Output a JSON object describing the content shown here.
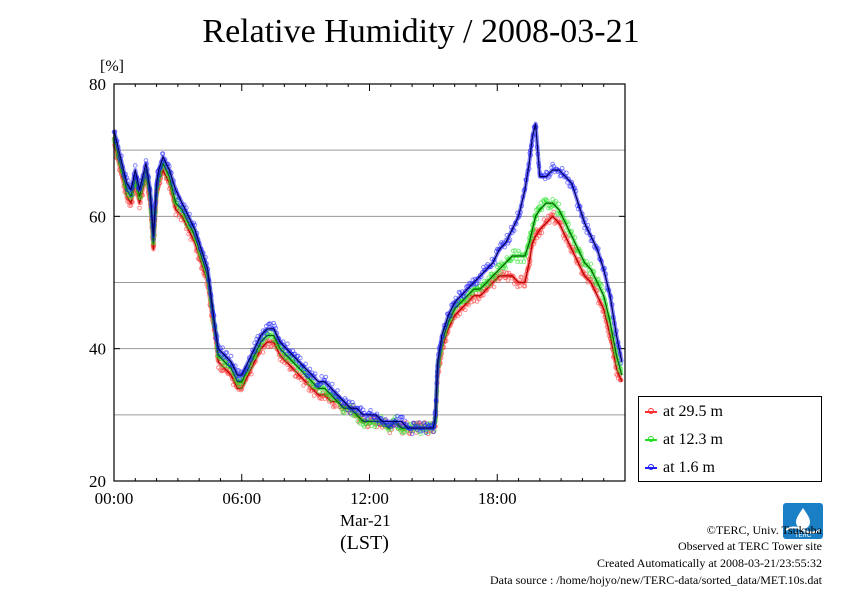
{
  "chart_data": {
    "type": "line",
    "title": "Relative Humidity / 2008-03-21",
    "ylabel": "[%]",
    "xlabel_date": "Mar-21",
    "xlabel_unit": "(LST)",
    "ylim": [
      20,
      80
    ],
    "yticks": [
      "20",
      "40",
      "60",
      "80"
    ],
    "xlim": [
      0,
      24
    ],
    "xticks": [
      {
        "x": 0,
        "label": "00:00"
      },
      {
        "x": 6,
        "label": "06:00"
      },
      {
        "x": 12,
        "label": "12:00"
      },
      {
        "x": 18,
        "label": "18:00"
      }
    ],
    "grid": true,
    "legend_position": "right-bottom",
    "x": [
      0.0,
      0.3,
      0.6,
      0.8,
      1.0,
      1.2,
      1.5,
      1.7,
      1.85,
      2.0,
      2.1,
      2.3,
      2.6,
      2.9,
      3.2,
      3.5,
      3.8,
      4.1,
      4.4,
      4.6,
      4.75,
      4.9,
      5.2,
      5.5,
      5.8,
      6.0,
      6.3,
      6.6,
      6.9,
      7.2,
      7.5,
      7.8,
      8.1,
      8.4,
      8.7,
      9.0,
      9.3,
      9.6,
      9.9,
      10.2,
      10.5,
      10.8,
      11.1,
      11.4,
      11.7,
      12.0,
      12.3,
      12.6,
      12.9,
      13.2,
      13.5,
      13.8,
      14.1,
      14.4,
      14.7,
      15.0,
      15.1,
      15.2,
      15.4,
      15.7,
      16.0,
      16.3,
      16.6,
      16.9,
      17.2,
      17.5,
      17.8,
      18.1,
      18.4,
      18.7,
      19.0,
      19.3,
      19.5,
      19.65,
      19.8,
      20.0,
      20.3,
      20.6,
      20.9,
      21.2,
      21.5,
      21.8,
      22.1,
      22.4,
      22.7,
      23.0,
      23.3,
      23.6,
      23.85
    ],
    "series": [
      {
        "name": "at 29.5 m",
        "color": "#ff3030",
        "values": [
          71,
          67,
          63,
          62,
          65,
          62,
          66,
          62,
          55,
          63,
          65,
          67,
          65,
          61,
          60,
          58,
          56,
          53,
          50,
          45,
          42,
          38,
          37,
          36,
          34,
          34,
          36,
          38,
          40,
          41,
          41,
          39,
          38,
          37,
          36,
          35,
          34,
          33,
          33,
          32,
          32,
          31,
          31,
          30,
          29,
          29,
          29,
          29,
          28,
          29,
          28,
          28,
          28,
          28,
          28,
          28,
          29,
          36,
          40,
          43,
          45,
          46,
          47,
          48,
          48,
          49,
          50,
          51,
          51,
          51,
          50,
          50,
          53,
          56,
          57,
          58,
          59,
          60,
          59,
          57,
          55,
          53,
          51,
          50,
          48,
          46,
          42,
          37,
          35
        ]
      },
      {
        "name": "at 12.3 m",
        "color": "#20e020",
        "values": [
          72,
          68,
          64,
          63,
          66,
          63,
          67,
          63,
          56,
          64,
          66,
          68,
          66,
          62,
          61,
          59,
          57,
          54,
          51,
          46,
          43,
          39,
          38,
          37,
          35,
          35,
          37,
          39,
          41,
          42,
          42,
          40,
          39,
          38,
          37,
          36,
          35,
          34,
          34,
          33,
          32,
          31,
          31,
          30,
          29,
          29,
          29,
          29,
          28,
          29,
          28,
          28,
          28,
          28,
          28,
          28,
          29,
          37,
          41,
          44,
          46,
          47,
          48,
          49,
          49,
          50,
          51,
          52,
          53,
          54,
          54,
          54,
          56,
          58,
          60,
          61,
          62,
          62,
          61,
          59,
          57,
          55,
          53,
          52,
          50,
          48,
          44,
          39,
          36
        ]
      },
      {
        "name": "at 1.6 m",
        "color": "#2020ff",
        "values": [
          73,
          69,
          65,
          64,
          67,
          64,
          68,
          64,
          57,
          65,
          67,
          69,
          67,
          64,
          62,
          60,
          58,
          55,
          52,
          47,
          43,
          40,
          39,
          38,
          36,
          36,
          38,
          40,
          42,
          43,
          43,
          41,
          40,
          39,
          38,
          37,
          36,
          35,
          35,
          34,
          33,
          32,
          31,
          31,
          30,
          30,
          30,
          29,
          29,
          29,
          29,
          28,
          28,
          28,
          28,
          28,
          30,
          38,
          42,
          45,
          47,
          48,
          49,
          50,
          51,
          52,
          53,
          55,
          56,
          58,
          60,
          64,
          68,
          72,
          74,
          66,
          66,
          67,
          67,
          66,
          65,
          62,
          59,
          57,
          55,
          52,
          48,
          42,
          38
        ]
      }
    ]
  },
  "footer": {
    "copyright": "©TERC, Univ. Tsukuba",
    "site": "Observed at TERC Tower site",
    "created": "Created Automatically at 2008-03-21/23:55:32",
    "source": "Data source : /home/hojyo/new/TERC-data/sorted_data/MET.10s.dat"
  },
  "logo_text": "TERC"
}
